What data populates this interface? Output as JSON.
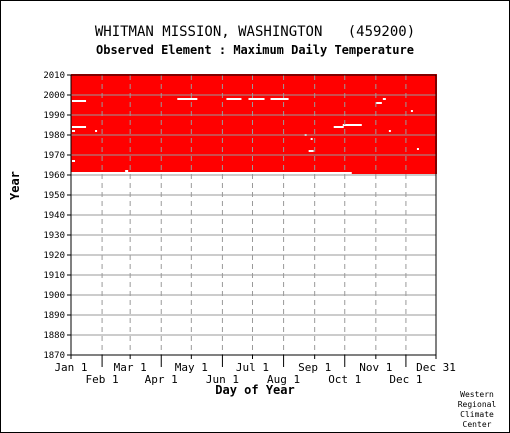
{
  "header": {
    "title": "WHITMAN MISSION, WASHINGTON   (459200)",
    "subtitle": "Observed Element : Maximum Daily Temperature"
  },
  "credit": [
    "Western",
    "Regional",
    "Climate",
    "Center"
  ],
  "colors": {
    "data": "#ff0000",
    "grid": "#9a9a9a",
    "axis": "#000000"
  },
  "chart_data": {
    "type": "heatmap",
    "title": "WHITMAN MISSION, WASHINGTON   (459200)",
    "subtitle": "Observed Element : Maximum Daily Temperature",
    "xlabel": "Day of Year",
    "ylabel": "Year",
    "xlim": [
      1,
      365
    ],
    "ylim": [
      1870,
      2010
    ],
    "grid": true,
    "x_ticks": [
      {
        "day": 1,
        "label": "Jan 1",
        "row": "top"
      },
      {
        "day": 32,
        "label": "Feb 1",
        "row": "bottom"
      },
      {
        "day": 60,
        "label": "Mar 1",
        "row": "top"
      },
      {
        "day": 91,
        "label": "Apr 1",
        "row": "bottom"
      },
      {
        "day": 121,
        "label": "May 1",
        "row": "top"
      },
      {
        "day": 152,
        "label": "Jun 1",
        "row": "bottom"
      },
      {
        "day": 182,
        "label": "Jul 1",
        "row": "top"
      },
      {
        "day": 213,
        "label": "Aug 1",
        "row": "bottom"
      },
      {
        "day": 244,
        "label": "Sep 1",
        "row": "top"
      },
      {
        "day": 274,
        "label": "Oct 1",
        "row": "bottom"
      },
      {
        "day": 305,
        "label": "Nov 1",
        "row": "top"
      },
      {
        "day": 335,
        "label": "Dec 1",
        "row": "bottom"
      },
      {
        "day": 365,
        "label": "Dec 31",
        "row": "top"
      }
    ],
    "y_ticks": [
      1870,
      1880,
      1890,
      1900,
      1910,
      1920,
      1930,
      1940,
      1950,
      1960,
      1970,
      1980,
      1990,
      2000,
      2010
    ],
    "coverage": [
      {
        "year_start": 1962,
        "year_end": 2010,
        "day_start": 1,
        "day_end": 281
      },
      {
        "year_start": 1961,
        "year_end": 2010,
        "day_start": 281,
        "day_end": 365
      }
    ],
    "gaps": [
      {
        "year": 1997,
        "day_start": 2,
        "day_end": 15
      },
      {
        "year": 1984,
        "day_start": 2,
        "day_end": 15
      },
      {
        "year": 1982,
        "day_start": 2,
        "day_end": 4
      },
      {
        "year": 1967,
        "day_start": 2,
        "day_end": 4
      },
      {
        "year": 1982,
        "day_start": 25,
        "day_end": 26
      },
      {
        "year": 1962,
        "day_start": 55,
        "day_end": 57
      },
      {
        "year": 1998,
        "day_start": 107,
        "day_end": 126
      },
      {
        "year": 1998,
        "day_start": 156,
        "day_end": 170
      },
      {
        "year": 1998,
        "day_start": 178,
        "day_end": 193
      },
      {
        "year": 1998,
        "day_start": 200,
        "day_end": 217
      },
      {
        "year": 1980,
        "day_start": 234,
        "day_end": 235
      },
      {
        "year": 1972,
        "day_start": 238,
        "day_end": 242
      },
      {
        "year": 1978,
        "day_start": 240,
        "day_end": 241
      },
      {
        "year": 1984,
        "day_start": 263,
        "day_end": 272
      },
      {
        "year": 1985,
        "day_start": 272,
        "day_end": 290
      },
      {
        "year": 1996,
        "day_start": 305,
        "day_end": 310
      },
      {
        "year": 1998,
        "day_start": 312,
        "day_end": 314
      },
      {
        "year": 1982,
        "day_start": 318,
        "day_end": 319
      },
      {
        "year": 1992,
        "day_start": 340,
        "day_end": 341
      },
      {
        "year": 1973,
        "day_start": 346,
        "day_end": 347
      }
    ]
  }
}
